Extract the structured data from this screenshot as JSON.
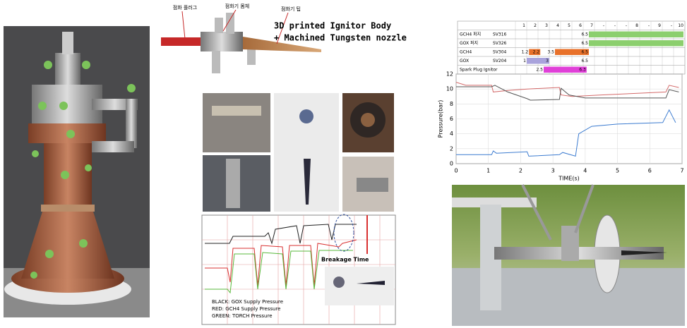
{
  "cad": {
    "labels": [
      "점화 플러그",
      "점화기 몸체",
      "점화기 팁"
    ],
    "title_line1": "3D printed Ignitor Body",
    "title_line2": "+ Machined Tungsten nozzle"
  },
  "test_chart": {
    "annotation": "Breakage Time",
    "legend": [
      "BLACK: GOX Supply Pressure",
      "RED: GCH4 Supply Pressure",
      "GREEN: TORCH Pressure"
    ]
  },
  "timing_table": {
    "columns": [
      "1",
      "2",
      "3",
      "4",
      "5",
      "6",
      "7",
      "-",
      "-",
      "-",
      "8",
      "-",
      "9",
      "-",
      "10"
    ],
    "rows": [
      {
        "name": "GCH4 퍼지",
        "valve": "SV316",
        "times": [
          6.5
        ],
        "color": "#8ccf6e",
        "open_end": true
      },
      {
        "name": "GOX 퍼지",
        "valve": "SV326",
        "times": [
          6.5
        ],
        "color": "#8ccf6e",
        "open_end": true
      },
      {
        "name": "GCH4",
        "valve": "SV304",
        "times": [
          1.2,
          2.2,
          3.5,
          6.5
        ],
        "color": "#e8712a",
        "open_end": false
      },
      {
        "name": "GOX",
        "valve": "SV204",
        "times": [
          1.0,
          3.0,
          6.5
        ],
        "color": "#a9a3dc",
        "open_end": false
      },
      {
        "name": "Spark Plug Ignitor",
        "times": [
          2.5,
          6.3
        ],
        "color": "#e040d8",
        "open_end": false
      }
    ]
  },
  "pressure_chart": {
    "type": "line",
    "x_label": "TIME(s)",
    "y_label": "Pressure(bar)",
    "xlim": [
      0,
      7
    ],
    "ylim": [
      0,
      12
    ],
    "xticks": [
      0,
      1,
      2,
      3,
      4,
      5,
      6,
      7
    ],
    "yticks": [
      0,
      2,
      4,
      6,
      8,
      10,
      12
    ],
    "grid": true,
    "series": [
      {
        "color": "#d46a6a",
        "x": [
          0,
          0.3,
          1.1,
          1.15,
          1.6,
          2.2,
          3.2,
          3.25,
          3.6,
          4.5,
          5.5,
          6.5,
          6.6,
          6.9
        ],
        "y": [
          10.9,
          10.5,
          10.5,
          9.6,
          9.8,
          10.0,
          10.2,
          9.2,
          9.0,
          9.2,
          9.4,
          9.6,
          10.5,
          10.2
        ]
      },
      {
        "color": "#555555",
        "x": [
          0,
          1.1,
          1.2,
          1.6,
          2.2,
          2.3,
          3.2,
          3.25,
          3.5,
          4.0,
          5.0,
          6.5,
          6.6,
          6.9
        ],
        "y": [
          10.3,
          10.3,
          10.5,
          9.6,
          8.7,
          8.5,
          8.6,
          10.1,
          9.2,
          8.8,
          8.8,
          8.8,
          9.9,
          9.6
        ]
      },
      {
        "color": "#3b7bd0",
        "x": [
          0,
          1.1,
          1.15,
          1.25,
          2.2,
          2.25,
          3.2,
          3.3,
          3.7,
          3.8,
          4.2,
          5.0,
          6.4,
          6.6,
          6.8
        ],
        "y": [
          1.2,
          1.2,
          1.7,
          1.4,
          1.6,
          1.0,
          1.2,
          1.5,
          1.0,
          4.0,
          5.0,
          5.3,
          5.5,
          7.2,
          5.5
        ]
      }
    ]
  }
}
